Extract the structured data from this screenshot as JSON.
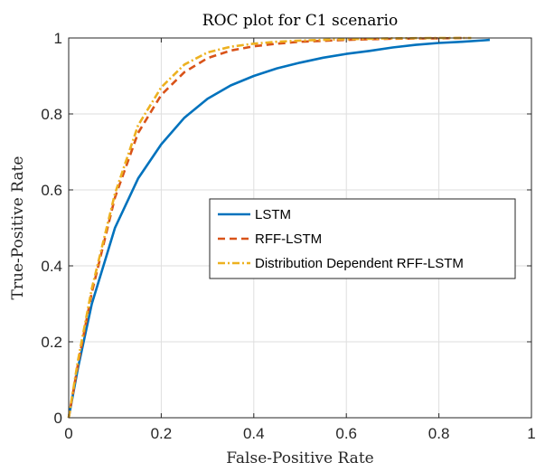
{
  "chart_data": {
    "type": "line",
    "title": "ROC plot for C1 scenario",
    "xlabel": "False-Positive Rate",
    "ylabel": "True-Positive Rate",
    "xlim": [
      0,
      1
    ],
    "ylim": [
      0,
      1
    ],
    "xticks": [
      "0",
      "0.2",
      "0.4",
      "0.6",
      "0.8",
      "1"
    ],
    "yticks": [
      "0",
      "0.2",
      "0.4",
      "0.6",
      "0.8",
      "1"
    ],
    "grid": true,
    "legend_position": "center-right",
    "series": [
      {
        "name": "LSTM",
        "color": "#0072BD",
        "style": "solid",
        "x": [
          0,
          0.02,
          0.05,
          0.08,
          0.1,
          0.15,
          0.2,
          0.25,
          0.3,
          0.35,
          0.4,
          0.45,
          0.5,
          0.55,
          0.6,
          0.65,
          0.7,
          0.75,
          0.8,
          0.85,
          0.9,
          0.91
        ],
        "y": [
          0,
          0.13,
          0.3,
          0.42,
          0.5,
          0.63,
          0.72,
          0.79,
          0.84,
          0.875,
          0.9,
          0.92,
          0.935,
          0.948,
          0.958,
          0.966,
          0.975,
          0.982,
          0.987,
          0.99,
          0.994,
          0.995
        ]
      },
      {
        "name": "RFF-LSTM",
        "color": "#D95319",
        "style": "dashed",
        "x": [
          0,
          0.02,
          0.05,
          0.1,
          0.15,
          0.2,
          0.25,
          0.3,
          0.35,
          0.4,
          0.45,
          0.5,
          0.6,
          0.7,
          0.8,
          0.86
        ],
        "y": [
          0,
          0.14,
          0.33,
          0.58,
          0.75,
          0.85,
          0.91,
          0.947,
          0.967,
          0.978,
          0.985,
          0.99,
          0.995,
          0.998,
          0.999,
          1.0
        ]
      },
      {
        "name": "Distribution Dependent RFF-LSTM",
        "color": "#EDB120",
        "style": "dashdot",
        "x": [
          0,
          0.02,
          0.05,
          0.1,
          0.15,
          0.2,
          0.25,
          0.3,
          0.35,
          0.4,
          0.45,
          0.5,
          0.6,
          0.7,
          0.8,
          0.87
        ],
        "y": [
          0,
          0.15,
          0.34,
          0.59,
          0.77,
          0.87,
          0.93,
          0.962,
          0.977,
          0.985,
          0.99,
          0.993,
          0.997,
          0.999,
          1.0,
          1.0
        ]
      }
    ]
  }
}
